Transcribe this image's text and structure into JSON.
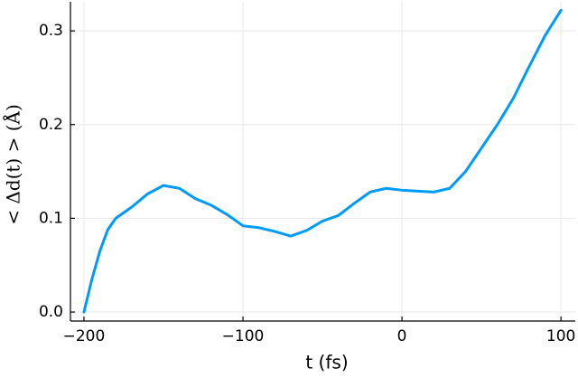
{
  "chart_data": {
    "type": "line",
    "x_label": "t (fs)",
    "y_label": "< Δd(t) > (Å)",
    "x": [
      -200,
      -195,
      -190,
      -185,
      -180,
      -170,
      -160,
      -150,
      -140,
      -130,
      -120,
      -110,
      -100,
      -90,
      -80,
      -70,
      -60,
      -50,
      -40,
      -30,
      -20,
      -10,
      0,
      10,
      20,
      30,
      40,
      50,
      60,
      70,
      80,
      90,
      100
    ],
    "series": [
      {
        "color": "#009af9",
        "values": [
          0,
          0.035,
          0.065,
          0.088,
          0.1,
          0.112,
          0.126,
          0.135,
          0.132,
          0.121,
          0.114,
          0.104,
          0.092,
          0.09,
          0.086,
          0.081,
          0.087,
          0.097,
          0.103,
          0.116,
          0.128,
          0.132,
          0.13,
          0.129,
          0.128,
          0.132,
          0.15,
          0.175,
          0.2,
          0.228,
          0.262,
          0.295,
          0.322
        ]
      }
    ],
    "xlim": [
      -208.5,
      109
    ],
    "ylim": [
      -0.0096,
      0.331
    ],
    "xticks": [
      {
        "value": -200,
        "label": "−200"
      },
      {
        "value": -100,
        "label": "−100"
      },
      0,
      100
    ],
    "yticks": [
      {
        "value": 0,
        "label": "0.0"
      },
      0.1,
      0.2,
      0.3
    ],
    "grid": true
  }
}
